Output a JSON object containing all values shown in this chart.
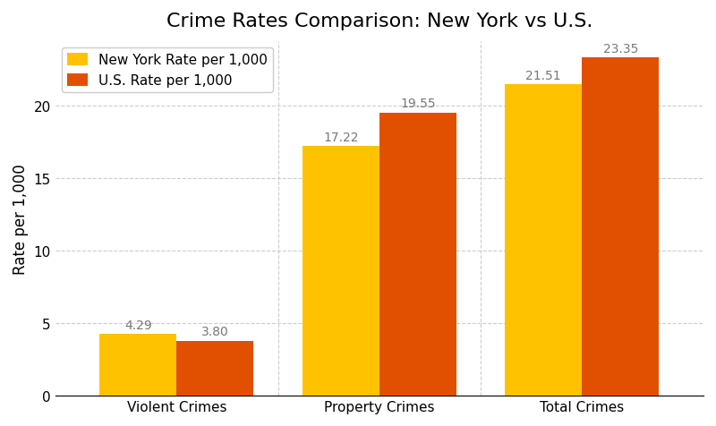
{
  "title": "Crime Rates Comparison: New York vs U.S.",
  "categories": [
    "Violent Crimes",
    "Property Crimes",
    "Total Crimes"
  ],
  "new_york_values": [
    4.29,
    17.22,
    21.51
  ],
  "us_values": [
    3.8,
    19.55,
    23.35
  ],
  "ny_color": "#FFC200",
  "us_color": "#E05000",
  "ylabel": "Rate per 1,000",
  "legend_labels": [
    "New York Rate per 1,000",
    "U.S. Rate per 1,000"
  ],
  "ylim": [
    0,
    24.5
  ],
  "yticks": [
    0,
    5,
    10,
    15,
    20
  ],
  "bar_width": 0.38,
  "title_fontsize": 16,
  "label_fontsize": 12,
  "tick_fontsize": 11,
  "annotation_fontsize": 10,
  "background_color": "#ffffff",
  "grid_color": "#cccccc",
  "annotation_color": "#777777"
}
